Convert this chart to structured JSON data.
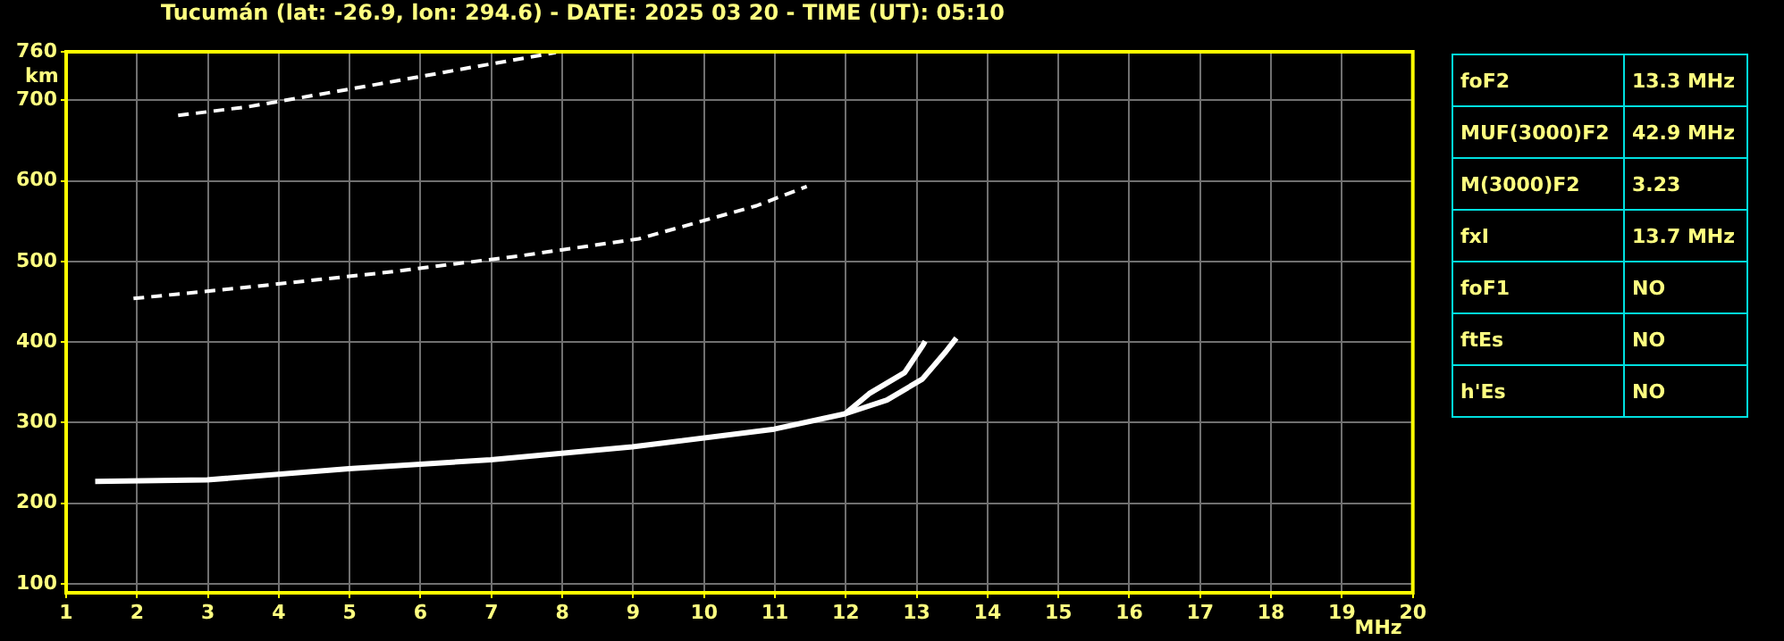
{
  "chart_data": [
    {
      "type": "line",
      "title": "Tucumán (lat: -26.9, lon: 294.6) - DATE: 2025 03 20 - TIME (UT): 05:10",
      "xlabel": "MHz",
      "ylabel": "km",
      "xlim": [
        1,
        20
      ],
      "xticks": [
        1,
        2,
        3,
        4,
        5,
        6,
        7,
        8,
        9,
        10,
        11,
        12,
        13,
        14,
        15,
        16,
        17,
        18,
        19,
        20
      ],
      "ylim": [
        89,
        760
      ],
      "yticks": [
        100,
        200,
        300,
        400,
        500,
        600,
        700,
        760
      ],
      "grid": true,
      "legend": false,
      "marker": "none",
      "series": [
        {
          "color": "#ffffff",
          "line_style": "solid",
          "x": [
            1.41,
            2.99,
            4.99,
            6.99,
            8.99,
            10.99,
            11.99,
            12.33,
            12.83,
            13.08,
            13.12
          ],
          "values": [
            227,
            229,
            243,
            254,
            270,
            292,
            311,
            336,
            362,
            395,
            401
          ]
        },
        {
          "color": "#ffffff",
          "line_style": "solid",
          "x": [
            11.99,
            12.58,
            13.08,
            13.41,
            13.56
          ],
          "values": [
            311,
            328,
            354,
            388,
            405
          ]
        },
        {
          "color": "#ffffff",
          "line_style": "dashed",
          "x": [
            1.95,
            3.66,
            5.58,
            7.41,
            9.08,
            10.74,
            11.45
          ],
          "values": [
            454,
            469,
            487,
            507,
            528,
            569,
            593
          ]
        },
        {
          "color": "#ffffff",
          "line_style": "dashed",
          "x": [
            2.58,
            3.58,
            5.41,
            6.74,
            7.91
          ],
          "values": [
            681,
            692,
            720,
            741,
            759
          ]
        }
      ]
    },
    {
      "type": "other",
      "annotations": [
        "foF2",
        "13.3 MHz",
        "MUF(3000)F2",
        "42.9 MHz",
        "M(3000)F2",
        "3.23",
        "fxI",
        "13.7 MHz",
        "foF1",
        "NO",
        "ftEs",
        "NO",
        "h'Es",
        "NO"
      ]
    }
  ]
}
